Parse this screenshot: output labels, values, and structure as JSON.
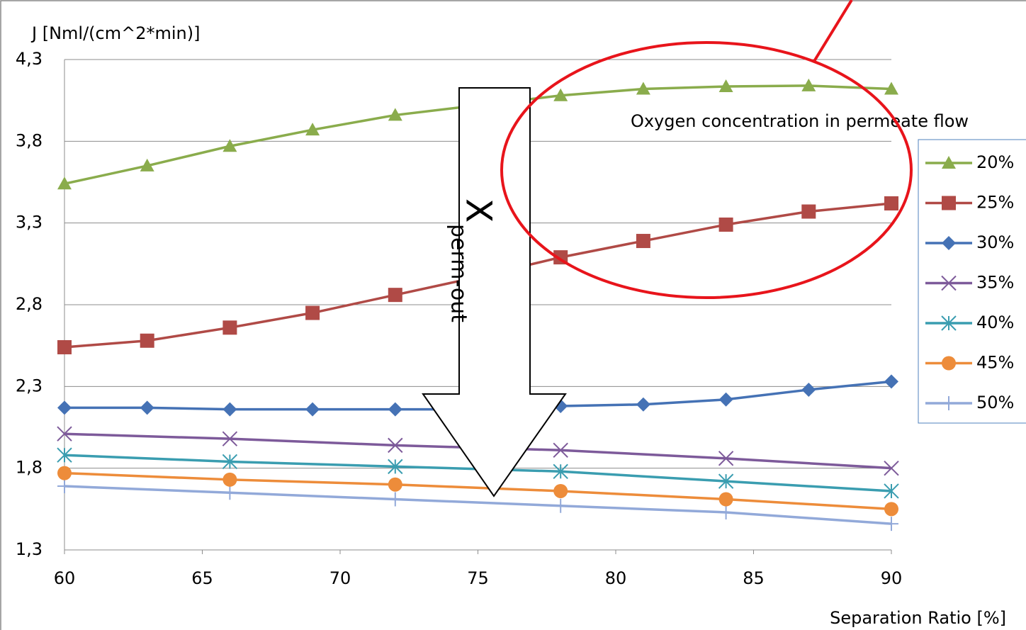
{
  "chart_data": {
    "type": "line",
    "y_label": "J [Nml/(cm^2*min)]",
    "x_label": "Separation Ratio [%]",
    "legend_title": "Oxygen concentration in permeate flow",
    "annotation": {
      "main": "X",
      "sub": "perm-out"
    },
    "xlim": [
      60,
      90
    ],
    "xticks": [
      60,
      65,
      70,
      75,
      80,
      85,
      90
    ],
    "ylim": [
      1.3,
      4.3
    ],
    "yticks": [
      {
        "value": 1.3,
        "label": "1,3"
      },
      {
        "value": 1.8,
        "label": "1,8"
      },
      {
        "value": 2.3,
        "label": "2,3"
      },
      {
        "value": 2.8,
        "label": "2,8"
      },
      {
        "value": 3.3,
        "label": "3,3"
      },
      {
        "value": 3.8,
        "label": "3,8"
      },
      {
        "value": 4.3,
        "label": "4,3"
      }
    ],
    "grid": true,
    "legend": "right",
    "series": [
      {
        "name": "20%",
        "color": "#8aac4c",
        "marker": "triangle",
        "x": [
          60,
          63,
          66,
          69,
          72,
          75,
          78,
          81,
          84,
          87,
          90
        ],
        "values": [
          3.54,
          3.65,
          3.77,
          3.87,
          3.96,
          4.02,
          4.08,
          4.12,
          4.135,
          4.14,
          4.12
        ]
      },
      {
        "name": "25%",
        "color": "#b04a46",
        "marker": "square",
        "x": [
          60,
          63,
          66,
          69,
          72,
          75,
          78,
          81,
          84,
          87,
          90
        ],
        "values": [
          2.54,
          2.58,
          2.66,
          2.75,
          2.86,
          2.97,
          3.09,
          3.19,
          3.29,
          3.37,
          3.42
        ]
      },
      {
        "name": "30%",
        "color": "#4572b5",
        "marker": "diamond",
        "x": [
          60,
          63,
          66,
          69,
          72,
          75,
          78,
          81,
          84,
          87,
          90
        ],
        "values": [
          2.17,
          2.17,
          2.16,
          2.16,
          2.16,
          2.16,
          2.18,
          2.19,
          2.22,
          2.28,
          2.33
        ]
      },
      {
        "name": "35%",
        "color": "#7d5a9a",
        "marker": "x",
        "x": [
          60,
          66,
          72,
          78,
          84,
          90
        ],
        "values": [
          2.01,
          1.98,
          1.94,
          1.91,
          1.86,
          1.8
        ]
      },
      {
        "name": "40%",
        "color": "#3a9db0",
        "marker": "star",
        "x": [
          60,
          66,
          72,
          78,
          84,
          90
        ],
        "values": [
          1.88,
          1.84,
          1.81,
          1.78,
          1.72,
          1.66
        ]
      },
      {
        "name": "45%",
        "color": "#ed8c3a",
        "marker": "circle",
        "x": [
          60,
          66,
          72,
          78,
          84,
          90
        ],
        "values": [
          1.77,
          1.73,
          1.7,
          1.66,
          1.61,
          1.55
        ]
      },
      {
        "name": "50%",
        "color": "#92a9d9",
        "marker": "plus",
        "x": [
          60,
          66,
          72,
          78,
          84,
          90
        ],
        "values": [
          1.69,
          1.65,
          1.61,
          1.57,
          1.53,
          1.46
        ]
      }
    ]
  }
}
